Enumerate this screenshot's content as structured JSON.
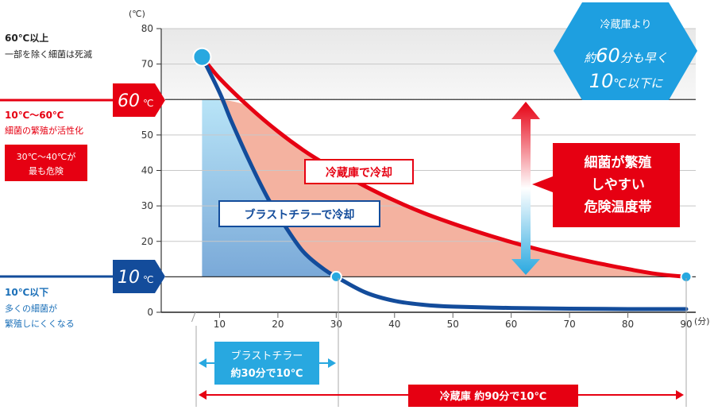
{
  "chart_data": {
    "type": "line",
    "unit_y": "(℃)",
    "unit_x": "(分)",
    "xlim": [
      0,
      90
    ],
    "ylim": [
      0,
      80
    ],
    "x_ticks": [
      10,
      20,
      30,
      40,
      50,
      60,
      70,
      80,
      90
    ],
    "y_ticks": [
      0,
      10,
      20,
      30,
      40,
      50,
      60,
      70,
      80
    ],
    "grid": "horizontal",
    "series": [
      {
        "name": "冷蔵庫で冷却",
        "color": "#e60012",
        "x": [
          7,
          10,
          15,
          20,
          25,
          30,
          35,
          40,
          45,
          50,
          55,
          60,
          65,
          70,
          75,
          80,
          85,
          90
        ],
        "y": [
          72,
          66,
          58,
          51,
          45,
          40,
          35.5,
          31.5,
          28,
          25,
          22.3,
          19.8,
          17.6,
          15.6,
          13.8,
          12.2,
          10.8,
          10
        ]
      },
      {
        "name": "ブラストチラーで冷却",
        "color": "#134c9b",
        "x": [
          7,
          10,
          12,
          15,
          18,
          20,
          23,
          25,
          28,
          30,
          35,
          40,
          45,
          50,
          60,
          70,
          80,
          90
        ],
        "y": [
          72,
          62,
          54,
          43,
          33,
          27.5,
          20,
          16,
          12,
          10,
          5.6,
          3.2,
          2.1,
          1.6,
          1.2,
          1.0,
          0.9,
          0.9
        ]
      }
    ],
    "markers": [
      {
        "x": 7,
        "y": 72,
        "size": "large"
      },
      {
        "x": 30,
        "y": 10,
        "size": "small"
      },
      {
        "x": 90,
        "y": 10,
        "size": "small"
      }
    ],
    "danger_band_y": [
      10,
      60
    ],
    "hot_band_y": [
      60,
      80
    ]
  },
  "left_labels": {
    "above60_title": "60℃以上",
    "above60_desc": "一部を除く細菌は死滅",
    "mid_title": "10℃〜60℃",
    "mid_desc": "細菌の繁殖が活性化",
    "mid_box_line1": "30℃〜40℃が",
    "mid_box_line2": "最も危険",
    "below10_title": "10℃以下",
    "below10_desc_line1": "多くの細菌が",
    "below10_desc_line2": "繁殖しにくくなる"
  },
  "temp_tags": {
    "t60_num": "60",
    "t60_unit": "℃",
    "t10_num": "10",
    "t10_unit": "℃"
  },
  "series_labels": {
    "fridge": "冷蔵庫で冷却",
    "blast": "ブラストチラーで冷却"
  },
  "danger_box": {
    "line1": "細菌が繁殖",
    "line2": "しやすい",
    "line3": "危険温度帯"
  },
  "badge": {
    "line1": "冷蔵庫より",
    "line2_pre": "約",
    "line2_num": "60",
    "line2_post": "分も早く",
    "line3_num": "10",
    "line3_post": "℃以下に"
  },
  "bottom": {
    "blast_line1": "ブラストチラー",
    "blast_line2": "約30分で10℃",
    "fridge": "冷蔵庫  約90分で10℃"
  },
  "colors": {
    "red": "#e60012",
    "navy": "#134c9b",
    "cyan": "#28a8e0",
    "salmon": "#f4b2a0",
    "text_blue": "#1a6fb8"
  }
}
